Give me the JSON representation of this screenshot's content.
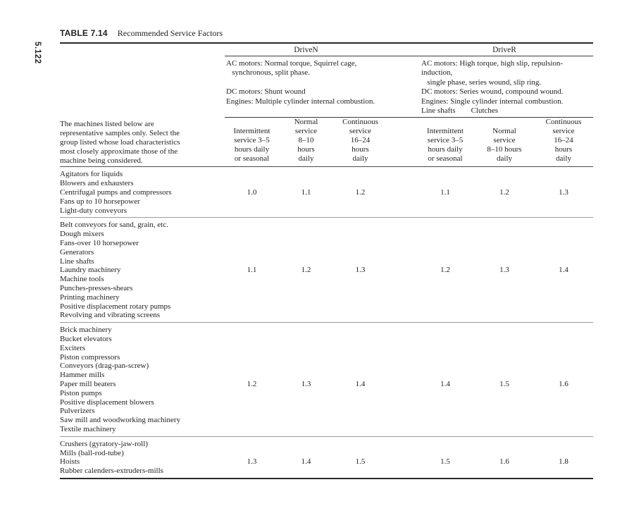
{
  "page": {
    "page_number": "5.122"
  },
  "table": {
    "label": "TABLE 7.14",
    "title": "Recommended Service Factors",
    "intro": "The machines listed below are\nrepresentative samples only. Select the\ngroup listed whose load characteristics\nmost closely approximate those of the\nmachine being considered.",
    "drive_n": {
      "name": "DriveN",
      "description": "AC motors: Normal torque, Squirrel cage,\n   synchronous, split phase.\n\nDC motors: Shunt wound\nEngines: Multiple cylinder internal combustion.",
      "columns": [
        "Intermittent\nservice 3–5\nhours daily\nor seasonal",
        "Normal\nservice\n8–10\nhours\ndaily",
        "Continuous\nservice\n16–24\nhours\ndaily"
      ]
    },
    "drive_r": {
      "name": "DriveR",
      "description": "AC motors: High torque, high slip, repulsion-induction,\n   single phase, series wound, slip ring.\nDC motors: Series wound, compound wound.\nEngines: Single cylinder internal combustion.\nLine shafts        Clutches",
      "columns": [
        "Intermittent\nservice 3–5\nhours daily\nor seasonal",
        "Normal\nservice\n8–10 hours\ndaily",
        "Continuous\nservice\n16–24\nhours\ndaily"
      ]
    },
    "groups": [
      {
        "rows": [
          {
            "machine": "Agitators for liquids",
            "values": []
          },
          {
            "machine": "Blowers and exhausters",
            "values": []
          },
          {
            "machine": "Centrifugal pumps and compressors",
            "values": [
              "1.0",
              "1.1",
              "1.2",
              "1.1",
              "1.2",
              "1.3"
            ]
          },
          {
            "machine": "Fans up to 10 horsepower",
            "values": []
          },
          {
            "machine": "Light-duty conveyors",
            "values": []
          }
        ]
      },
      {
        "rows": [
          {
            "machine": "Belt conveyors for sand, grain, etc.",
            "values": []
          },
          {
            "machine": "Dough mixers",
            "values": []
          },
          {
            "machine": "Fans-over 10 horsepower",
            "values": []
          },
          {
            "machine": "Generators",
            "values": []
          },
          {
            "machine": "Line shafts",
            "values": []
          },
          {
            "machine": "Laundry machinery",
            "values": [
              "1.1",
              "1.2",
              "1.3",
              "1.2",
              "1.3",
              "1.4"
            ]
          },
          {
            "machine": "Machine tools",
            "values": []
          },
          {
            "machine": "Punches-presses-shears",
            "values": []
          },
          {
            "machine": "Printing machinery",
            "values": []
          },
          {
            "machine": "Positive displacement rotary pumps",
            "values": []
          },
          {
            "machine": "Revolving and vibrating screens",
            "values": []
          }
        ]
      },
      {
        "rows": [
          {
            "machine": "Brick machinery",
            "values": []
          },
          {
            "machine": "Bucket elevators",
            "values": []
          },
          {
            "machine": "Exciters",
            "values": []
          },
          {
            "machine": "Piston compressors",
            "values": []
          },
          {
            "machine": "Conveyors (drag-pan-screw)",
            "values": []
          },
          {
            "machine": "Hammer mills",
            "values": []
          },
          {
            "machine": "Paper mill beaters",
            "values": [
              "1.2",
              "1.3",
              "1.4",
              "1.4",
              "1.5",
              "1.6"
            ]
          },
          {
            "machine": "Piston pumps",
            "values": []
          },
          {
            "machine": "Positive displacement blowers",
            "values": []
          },
          {
            "machine": "Pulverizers",
            "values": []
          },
          {
            "machine": "Saw mill and woodworking machinery",
            "values": []
          },
          {
            "machine": "Textile machinery",
            "values": []
          }
        ]
      },
      {
        "rows": [
          {
            "machine": "Crushers (gyratory-jaw-roll)",
            "values": []
          },
          {
            "machine": "Mills (ball-rod-tube)",
            "values": []
          },
          {
            "machine": "Hoists",
            "values": [
              "1.3",
              "1.4",
              "1.5",
              "1.5",
              "1.6",
              "1.8"
            ]
          },
          {
            "machine": "Rubber calenders-extruders-mills",
            "values": []
          }
        ]
      }
    ]
  }
}
